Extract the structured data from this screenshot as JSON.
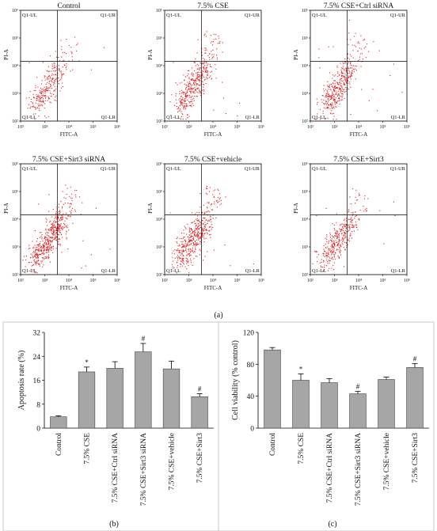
{
  "figure_labels": {
    "a": "(a)",
    "b": "(b)",
    "c": "(c)"
  },
  "flow_panels": [
    {
      "title": "Control",
      "quadrants": {
        "ul": "Q1-UL",
        "ur": "Q1-UR",
        "ll": "Q1-LL",
        "lr": "Q1-LR"
      },
      "xlabel": "FITC-A",
      "ylabel": "PI-A",
      "ticks": [
        "10²",
        "10³",
        "10⁴",
        "10⁵",
        "10⁶"
      ],
      "dot_color": "#e31a1c",
      "density": 0.55,
      "upper_spread": 0.15
    },
    {
      "title": "7.5% CSE",
      "quadrants": {
        "ul": "Q1-UL",
        "ur": "Q1-UR",
        "ll": "Q1-LL",
        "lr": "Q1-LR"
      },
      "xlabel": "FITC-A",
      "ylabel": "PI-A",
      "ticks": [
        "10²",
        "10³",
        "10⁴",
        "10⁵",
        "10⁶"
      ],
      "dot_color": "#e31a1c",
      "density": 0.8,
      "upper_spread": 0.45
    },
    {
      "title": "7.5% CSE+Ctrl siRNA",
      "quadrants": {
        "ul": "Q1-UL",
        "ur": "Q1-UR",
        "ll": "Q1-LL",
        "lr": "Q1-LR"
      },
      "xlabel": "FITC-A",
      "ylabel": "PI-A",
      "ticks": [
        "10²",
        "10³",
        "10⁴",
        "10⁵",
        "10⁶"
      ],
      "dot_color": "#e31a1c",
      "density": 0.8,
      "upper_spread": 0.5
    },
    {
      "title": "7.5% CSE+Sirt3 siRNA",
      "quadrants": {
        "ul": "Q1-UL",
        "ur": "Q1-UR",
        "ll": "Q1-LL",
        "lr": "Q1-LR"
      },
      "xlabel": "FITC-A",
      "ylabel": "PI-A",
      "ticks": [
        "10²",
        "10³",
        "10⁴",
        "10⁵",
        "10⁶"
      ],
      "dot_color": "#e31a1c",
      "density": 1.0,
      "upper_spread": 0.7
    },
    {
      "title": "7.5% CSE+vehicle",
      "quadrants": {
        "ul": "Q1-UL",
        "ur": "Q1-UR",
        "ll": "Q1-LL",
        "lr": "Q1-LR"
      },
      "xlabel": "FITC-A",
      "ylabel": "PI-A",
      "ticks": [
        "10²",
        "10³",
        "10⁴",
        "10⁵",
        "10⁶"
      ],
      "dot_color": "#e31a1c",
      "density": 0.9,
      "upper_spread": 0.5
    },
    {
      "title": "7.5% CSE+Sirt3",
      "quadrants": {
        "ul": "Q1-UL",
        "ur": "Q1-UR",
        "ll": "Q1-LL",
        "lr": "Q1-LR"
      },
      "xlabel": "FITC-A",
      "ylabel": "PI-A",
      "ticks": [
        "10²",
        "10³",
        "10⁴",
        "10⁵",
        "10⁶"
      ],
      "dot_color": "#e31a1c",
      "density": 0.7,
      "upper_spread": 0.3
    }
  ],
  "chart_data": [
    {
      "type": "bar",
      "panel": "(b)",
      "ylabel": "Apoptosis rate (%)",
      "ylim": [
        0,
        32
      ],
      "yticks": [
        0,
        8,
        16,
        24,
        32
      ],
      "categories": [
        "Control",
        "7.5% CSE",
        "7.5% CSE+Ctrl siRNA",
        "7.5% CSE+Sirt3 siRNA",
        "7.5% CSE+vehicle",
        "7.5% CSE+Sirt3"
      ],
      "values": [
        3.8,
        18.8,
        20.0,
        25.5,
        19.8,
        10.5
      ],
      "errors": [
        0.3,
        1.6,
        2.2,
        2.8,
        2.6,
        1.0
      ],
      "markers": [
        "",
        "*",
        "",
        "#",
        "",
        "#"
      ],
      "bar_color": "#a6a6a6"
    },
    {
      "type": "bar",
      "panel": "(c)",
      "ylabel": "Cell viability (% control)",
      "ylim": [
        0,
        120
      ],
      "yticks": [
        0,
        40,
        80,
        120
      ],
      "categories": [
        "Control",
        "7.5% CSE",
        "7.5% CSE+Ctrl siRNA",
        "7.5% CSE+Sirt3 siRNA",
        "7.5% CSE+vehicle",
        "7.5% CSE+Sirt3"
      ],
      "values": [
        98,
        60,
        57,
        43,
        61,
        76
      ],
      "errors": [
        3,
        8,
        5,
        3,
        3,
        5
      ],
      "markers": [
        "",
        "*",
        "",
        "#",
        "",
        "#"
      ],
      "bar_color": "#a6a6a6"
    }
  ]
}
